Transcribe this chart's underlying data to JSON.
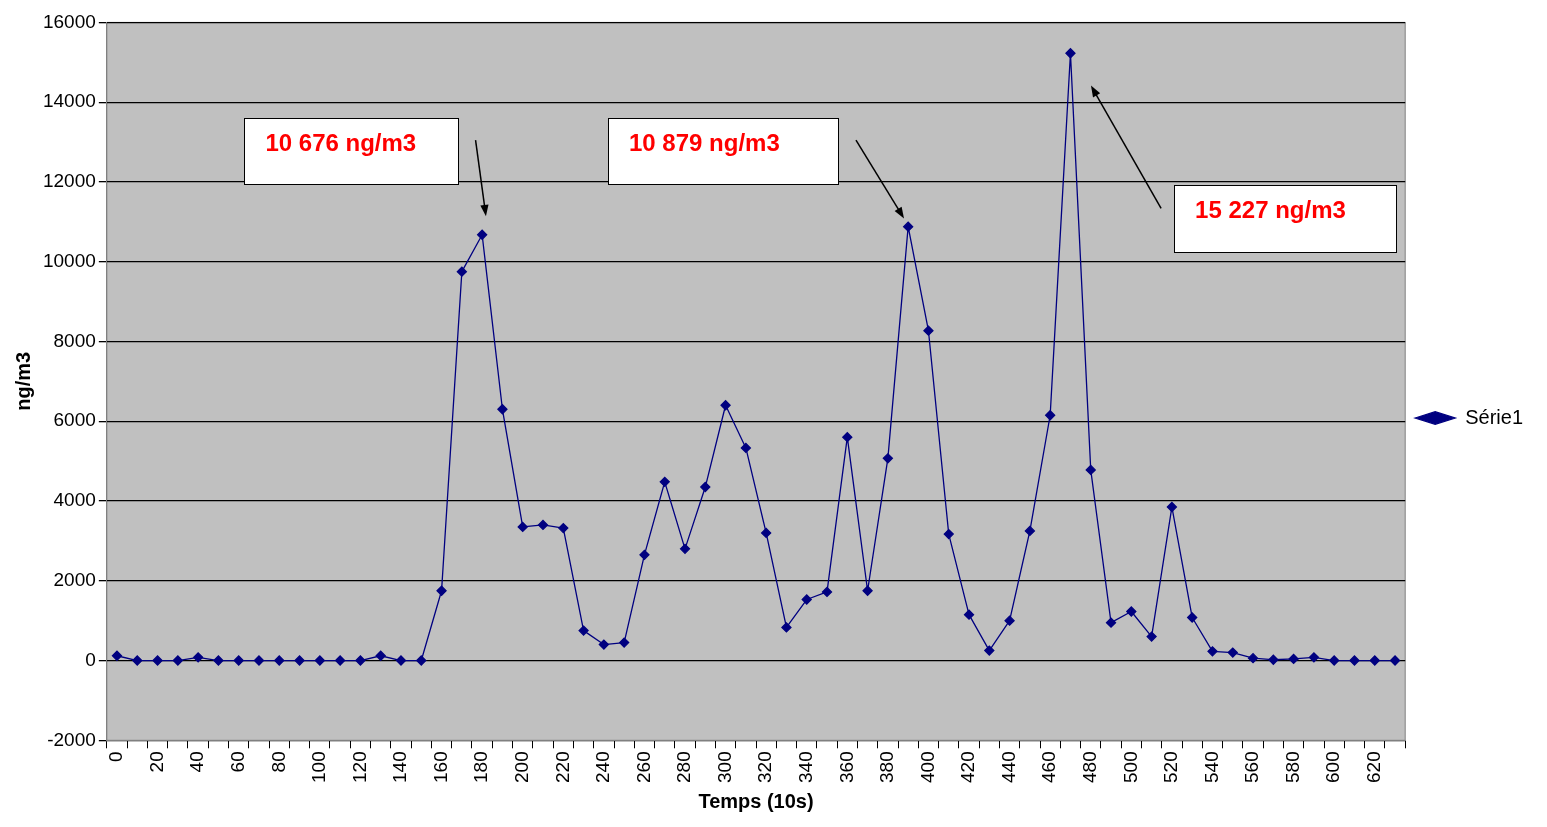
{
  "chart_data": {
    "type": "line",
    "xlabel": "Temps (10s)",
    "ylabel": "ng/m3",
    "categories": [
      "0",
      null,
      "20",
      null,
      "40",
      null,
      "60",
      null,
      "80",
      null,
      "100",
      null,
      "120",
      null,
      "140",
      null,
      "160",
      null,
      "180",
      null,
      "200",
      null,
      "220",
      null,
      "240",
      null,
      "260",
      null,
      "280",
      null,
      "300",
      null,
      "320",
      null,
      "340",
      null,
      "360",
      null,
      "380",
      null,
      "400",
      null,
      "420",
      null,
      "440",
      null,
      "460",
      null,
      "480",
      null,
      "500",
      null,
      "520",
      null,
      "540",
      null,
      "560",
      null,
      "580",
      null,
      "600",
      null,
      "620",
      null
    ],
    "series": [
      {
        "name": "Série1",
        "color": "#000080",
        "values": [
          120,
          0,
          0,
          0,
          80,
          0,
          0,
          0,
          0,
          0,
          0,
          0,
          0,
          120,
          0,
          0,
          1750,
          9750,
          10676,
          6300,
          3350,
          3400,
          3320,
          750,
          400,
          450,
          2650,
          4480,
          2800,
          4350,
          6400,
          5330,
          3200,
          830,
          1530,
          1720,
          5600,
          1750,
          5070,
          10879,
          8270,
          3170,
          1150,
          250,
          1000,
          3250,
          6150,
          15227,
          4780,
          950,
          1230,
          600,
          3850,
          1080,
          230,
          200,
          60,
          20,
          40,
          80,
          0,
          0,
          0,
          0
        ]
      }
    ],
    "ylim": [
      -2000,
      16000
    ],
    "yticks": [
      -2000,
      0,
      2000,
      4000,
      6000,
      8000,
      10000,
      12000,
      14000,
      16000
    ],
    "grid": "y",
    "legend": "right",
    "marker": "diamond",
    "line_style": "solid",
    "annotations": [
      "10 676 ng/m3",
      "10 879 ng/m3",
      "15 227 ng/m3"
    ]
  }
}
